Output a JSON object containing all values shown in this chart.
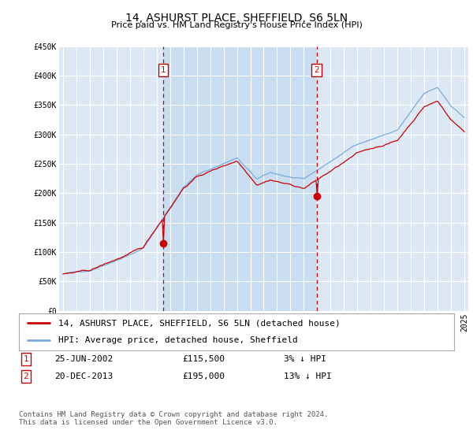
{
  "title": "14, ASHURST PLACE, SHEFFIELD, S6 5LN",
  "subtitle": "Price paid vs. HM Land Registry's House Price Index (HPI)",
  "ylim": [
    0,
    450000
  ],
  "yticks": [
    0,
    50000,
    100000,
    150000,
    200000,
    250000,
    300000,
    350000,
    400000,
    450000
  ],
  "ytick_labels": [
    "£0",
    "£50K",
    "£100K",
    "£150K",
    "£200K",
    "£250K",
    "£300K",
    "£350K",
    "£400K",
    "£450K"
  ],
  "background_color": "#ffffff",
  "plot_bg_color": "#dce9f5",
  "plot_bg_highlight": "#c8ddf0",
  "grid_color": "#ffffff",
  "hpi_color": "#7aaadd",
  "price_color": "#cc0000",
  "purchase1_year": 2002.48,
  "purchase1_price": 115500,
  "purchase2_year": 2013.96,
  "purchase2_price": 195000,
  "legend_line1": "14, ASHURST PLACE, SHEFFIELD, S6 5LN (detached house)",
  "legend_line2": "HPI: Average price, detached house, Sheffield",
  "footer": "Contains HM Land Registry data © Crown copyright and database right 2024.\nThis data is licensed under the Open Government Licence v3.0.",
  "title_fontsize": 10,
  "subtitle_fontsize": 8,
  "tick_fontsize": 7,
  "legend_fontsize": 8
}
